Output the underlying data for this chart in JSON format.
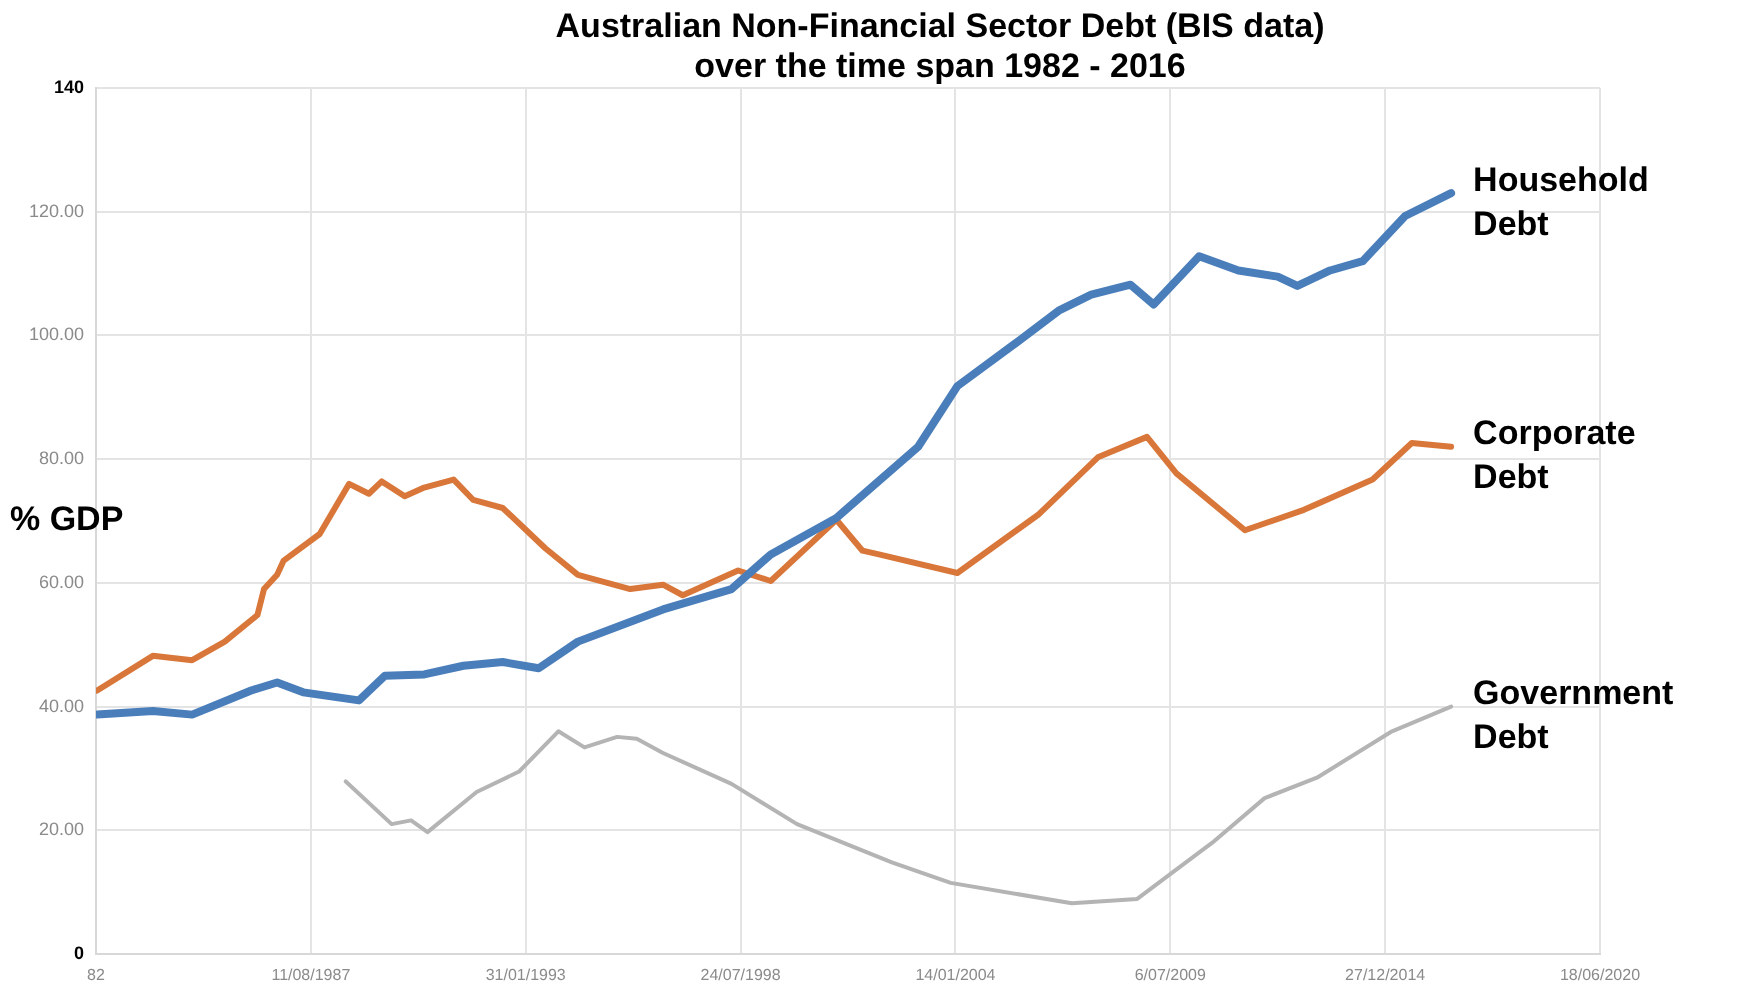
{
  "chart_data": {
    "type": "line",
    "title": "Australian Non-Financial Sector Debt (BIS data)\nover the time span 1982 - 2016",
    "ylabel": "% GDP",
    "xlim": [
      "1982-02-18",
      "2020-06-18"
    ],
    "xticks": [
      {
        "value": "1982-02-18",
        "label": "82"
      },
      {
        "value": "1987-08-11",
        "label": "11/08/1987"
      },
      {
        "value": "1993-01-31",
        "label": "31/01/1993"
      },
      {
        "value": "1998-07-24",
        "label": "24/07/1998"
      },
      {
        "value": "2004-01-14",
        "label": "14/01/2004"
      },
      {
        "value": "2009-07-06",
        "label": "6/07/2009"
      },
      {
        "value": "2014-12-27",
        "label": "27/12/2014"
      },
      {
        "value": "2020-06-18",
        "label": "18/06/2020"
      }
    ],
    "ylim": [
      0,
      140
    ],
    "yticks": [
      0,
      {
        "value": 20,
        "label": "20.00"
      },
      {
        "value": 40,
        "label": "40.00"
      },
      {
        "value": 60,
        "label": "60.00"
      },
      {
        "value": 80,
        "label": "80.00"
      },
      {
        "value": 100,
        "label": "100.00"
      },
      {
        "value": 120,
        "label": "120.00"
      },
      140
    ],
    "grid": true,
    "series": [
      {
        "name": "Household Debt",
        "color": "#4a7ebb",
        "x": [
          "1982-03",
          "1983-08",
          "1984-08",
          "1986-02",
          "1986-10",
          "1987-06",
          "1988-11",
          "1989-07",
          "1990-07",
          "1991-07",
          "1992-07",
          "1993-06",
          "1994-06",
          "1996-08",
          "1998-05",
          "1999-05",
          "2001-01",
          "2003-02",
          "2004-02",
          "2005-07",
          "2006-09",
          "2007-07",
          "2008-07",
          "2009-02",
          "2010-04",
          "2011-04",
          "2012-04",
          "2012-10",
          "2013-08",
          "2014-06",
          "2015-07",
          "2016-09"
        ],
        "values": [
          38.7,
          39.3,
          38.7,
          42.6,
          43.9,
          42.3,
          41,
          45,
          45.2,
          46.6,
          47.2,
          46.2,
          50.5,
          55.7,
          59,
          64.6,
          70.5,
          82,
          91.8,
          98.4,
          104,
          106.6,
          108.2,
          105,
          112.8,
          110.5,
          109.5,
          108,
          110.5,
          112,
          119.3,
          123
        ]
      },
      {
        "name": "Corporate Debt",
        "color": "#d9773a",
        "x": [
          "1982-03",
          "1983-08",
          "1984-08",
          "1985-06",
          "1986-04",
          "1986-06",
          "1986-10",
          "1986-12",
          "1987-11",
          "1988-08",
          "1989-02",
          "1989-06",
          "1990-01",
          "1990-07",
          "1991-04",
          "1991-10",
          "1992-07",
          "1993-08",
          "1994-06",
          "1995-10",
          "1996-08",
          "1997-02",
          "1998-07",
          "1999-05",
          "2001-01",
          "2001-09",
          "2002-02",
          "2004-02",
          "2006-03",
          "2007-09",
          "2008-12",
          "2009-09",
          "2011-06",
          "2012-12",
          "2014-09",
          "2015-09",
          "2016-09"
        ],
        "values": [
          42.6,
          48.2,
          47.5,
          50.5,
          54.8,
          59,
          61.3,
          63.6,
          67.9,
          76,
          74.4,
          76.4,
          74,
          75.4,
          76.7,
          73.4,
          72.1,
          65.6,
          61.3,
          59,
          59.7,
          58,
          62,
          60.3,
          70.2,
          65.2,
          64.6,
          61.6,
          71.1,
          80.3,
          83.6,
          77.7,
          68.5,
          71.8,
          76.7,
          82.6,
          82
        ]
      },
      {
        "name": "Government Debt",
        "color": "#b4b4b4",
        "x": [
          "1988-07",
          "1989-09",
          "1990-03",
          "1990-08",
          "1991-11",
          "1992-12",
          "1993-12",
          "1994-08",
          "1995-06",
          "1995-12",
          "1996-08",
          "1998-05",
          "2000-01",
          "2002-06",
          "2003-12",
          "2007-01",
          "2008-09",
          "2010-08",
          "2011-12",
          "2013-04",
          "2015-03",
          "2016-09"
        ],
        "values": [
          27.9,
          21,
          21.6,
          19.7,
          26.2,
          29.5,
          36,
          33.4,
          35.1,
          34.8,
          32.5,
          27.5,
          21,
          14.8,
          11.5,
          8.2,
          8.9,
          18,
          25.2,
          28.5,
          36,
          40
        ]
      }
    ]
  }
}
